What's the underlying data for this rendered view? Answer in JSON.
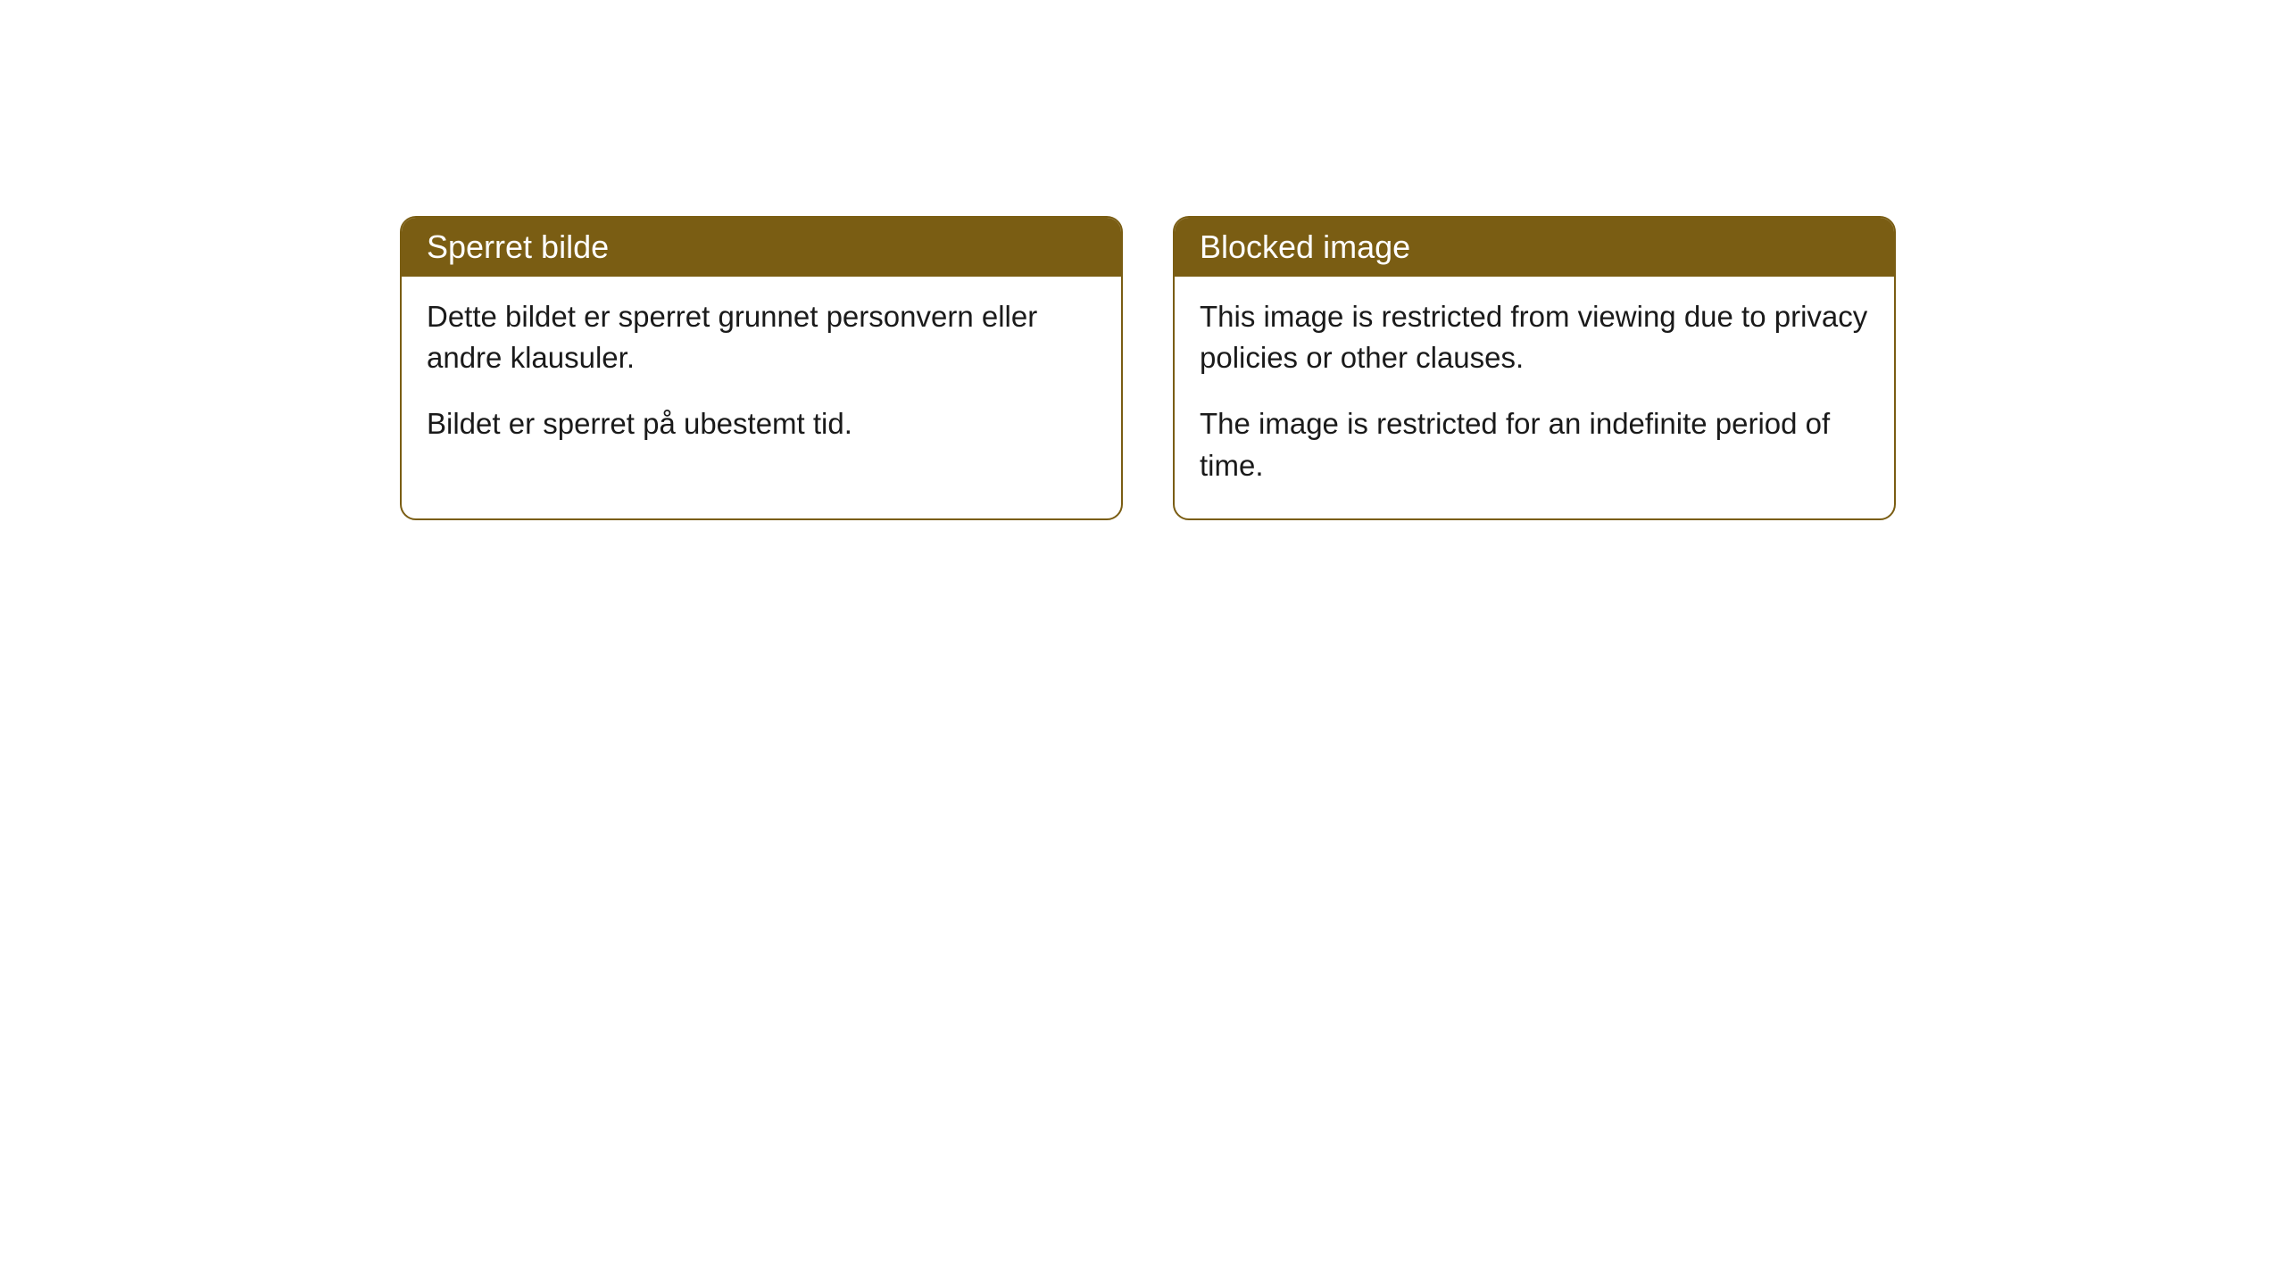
{
  "cards": [
    {
      "title": "Sperret bilde",
      "paragraph1": "Dette bildet er sperret grunnet personvern eller andre klausuler.",
      "paragraph2": "Bildet er sperret på ubestemt tid."
    },
    {
      "title": "Blocked image",
      "paragraph1": "This image is restricted from viewing due to privacy policies or other clauses.",
      "paragraph2": "The image is restricted for an indefinite period of time."
    }
  ],
  "styling": {
    "header_background": "#7a5d13",
    "header_text_color": "#ffffff",
    "border_color": "#7a5d13",
    "body_background": "#ffffff",
    "body_text_color": "#1a1a1a",
    "border_radius": "18px",
    "title_fontsize": 36,
    "body_fontsize": 33
  }
}
